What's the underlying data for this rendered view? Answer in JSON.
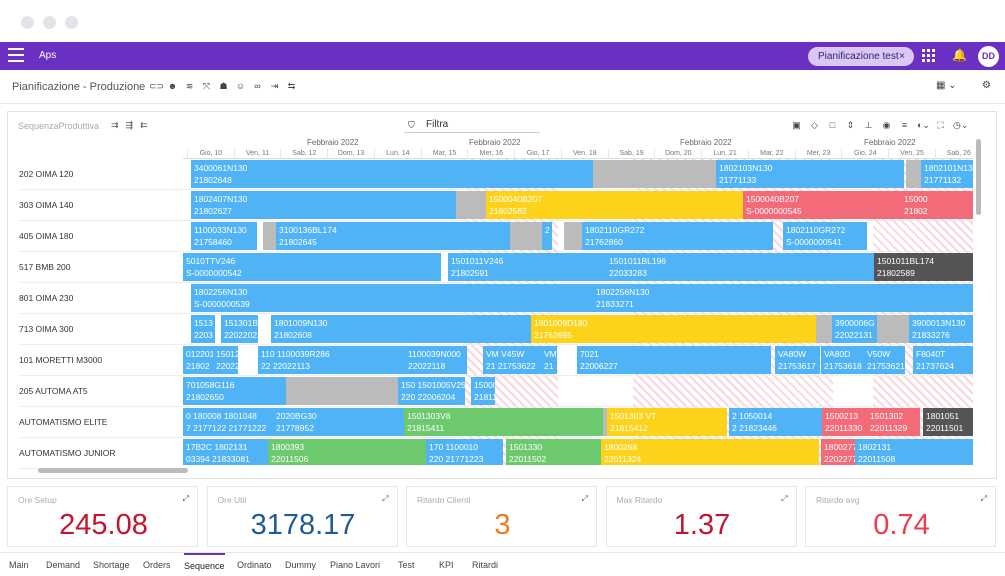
{
  "app": {
    "title": "Aps",
    "chip": "Pianificazione test",
    "chip_close": "×",
    "avatar": "DD",
    "bell": "🔔"
  },
  "toolbar": {
    "page_title": "Pianificazione - Produzione",
    "icons": [
      "⊂⊃",
      "☻",
      "≋",
      "⤧",
      "☗",
      "☺",
      "∞",
      "⇥",
      "⇆"
    ],
    "right1": "▦ ⌄",
    "right2": "⚙"
  },
  "panel": {
    "label": "SequenzaProduttiva",
    "left_icons": [
      "⇉",
      "⇶",
      "⇇"
    ],
    "filter_placeholder": "Filtra",
    "filter_icon": "⛉",
    "right_icons": [
      "▣",
      "◇",
      "□",
      "⇕",
      "⊥",
      "◉",
      "≡",
      "◐⌄",
      "⛶",
      "◷⌄"
    ]
  },
  "months": [
    {
      "label": "Febbraio 2022",
      "x": 124
    },
    {
      "label": "Febbraio 2022",
      "x": 286
    },
    {
      "label": "Febbraio 2022",
      "x": 497
    },
    {
      "label": "Febbraio 2022",
      "x": 681
    }
  ],
  "days": [
    "Gio, 10",
    "Ven, 11",
    "Sab, 12",
    "Dom, 13",
    "Lun, 14",
    "Mar, 15",
    "Mer, 16",
    "Gio, 17",
    "Ven, 18",
    "Sab, 19",
    "Dom, 20",
    "Lun, 21",
    "Mar, 22",
    "Mer, 23",
    "Gio, 24",
    "Ven, 25",
    "Sab, 26"
  ],
  "resources": [
    "202 OIMA 120",
    "303 OIMA 140",
    "405 OIMA 180",
    "517 BMB 200",
    "801 OIMA 230",
    "713 OIMA 300",
    "101 MORETTI M3000",
    "205 AUTOMA AT5",
    "AUTOMATISMO ELITE",
    "AUTOMATISMO JUNIOR"
  ],
  "bars": [
    {
      "row": 0,
      "x": 8,
      "w": 402,
      "c": "b",
      "l1": "3400061N130",
      "l2": "21802648"
    },
    {
      "row": 0,
      "x": 410,
      "w": 123,
      "c": "g",
      "l1": "",
      "l2": ""
    },
    {
      "row": 0,
      "x": 533,
      "w": 188,
      "c": "b",
      "l1": "1802103N130",
      "l2": "21771133"
    },
    {
      "row": 0,
      "x": 723,
      "w": 15,
      "c": "g",
      "l1": "",
      "l2": ""
    },
    {
      "row": 0,
      "x": 738,
      "w": 52,
      "c": "b",
      "l1": "1802101N13",
      "l2": "21771132"
    },
    {
      "row": 1,
      "x": 8,
      "w": 265,
      "c": "b",
      "l1": "1802407N130",
      "l2": "21802627"
    },
    {
      "row": 1,
      "x": 273,
      "w": 30,
      "c": "g",
      "l1": "",
      "l2": ""
    },
    {
      "row": 1,
      "x": 303,
      "w": 257,
      "c": "y",
      "l1": "1500040B207",
      "l2": "21802582"
    },
    {
      "row": 1,
      "x": 560,
      "w": 158,
      "c": "r",
      "l1": "1500040B207",
      "l2": "S-0000000545"
    },
    {
      "row": 1,
      "x": 718,
      "w": 72,
      "c": "r",
      "l1": "15000",
      "l2": "21802"
    },
    {
      "row": 2,
      "x": 8,
      "w": 66,
      "c": "b",
      "l1": "1100033N130",
      "l2": "21758460"
    },
    {
      "row": 2,
      "x": 80,
      "w": 13,
      "c": "g",
      "l1": "",
      "l2": ""
    },
    {
      "row": 2,
      "x": 93,
      "w": 234,
      "c": "b",
      "l1": "3100136BL174",
      "l2": "21802645"
    },
    {
      "row": 2,
      "x": 327,
      "w": 32,
      "c": "g",
      "l1": "",
      "l2": ""
    },
    {
      "row": 2,
      "x": 359,
      "w": 10,
      "c": "b",
      "l1": "2",
      "l2": ""
    },
    {
      "row": 2,
      "x": 381,
      "w": 18,
      "c": "g",
      "l1": "",
      "l2": ""
    },
    {
      "row": 2,
      "x": 399,
      "w": 191,
      "c": "b",
      "l1": "1802110GR272",
      "l2": "21762860"
    },
    {
      "row": 2,
      "x": 600,
      "w": 84,
      "c": "b",
      "l1": "1802110GR272",
      "l2": "S-0000000541"
    },
    {
      "row": 3,
      "x": 0,
      "w": 258,
      "c": "b",
      "l1": "5010TTV246",
      "l2": "S-0000000542"
    },
    {
      "row": 3,
      "x": 265,
      "w": 158,
      "c": "b",
      "l1": "1501011V246",
      "l2": "21802591"
    },
    {
      "row": 3,
      "x": 423,
      "w": 268,
      "c": "b",
      "l1": "1501011BL196",
      "l2": "22033283"
    },
    {
      "row": 3,
      "x": 691,
      "w": 99,
      "c": "d",
      "l1": "1501011BL174",
      "l2": "21802589"
    },
    {
      "row": 4,
      "x": 8,
      "w": 402,
      "c": "b",
      "l1": "1802256N130",
      "l2": "S-0000000539"
    },
    {
      "row": 4,
      "x": 410,
      "w": 380,
      "c": "b",
      "l1": "1802256N130",
      "l2": "21833271"
    },
    {
      "row": 5,
      "x": 8,
      "w": 24,
      "c": "b",
      "l1": "1513",
      "l2": "2203"
    },
    {
      "row": 5,
      "x": 38,
      "w": 37,
      "c": "b",
      "l1": "151301B",
      "l2": "2202202"
    },
    {
      "row": 5,
      "x": 88,
      "w": 260,
      "c": "b",
      "l1": "1801009N130",
      "l2": "21802608"
    },
    {
      "row": 5,
      "x": 348,
      "w": 285,
      "c": "y",
      "l1": "1801009D180",
      "l2": "21762695"
    },
    {
      "row": 5,
      "x": 633,
      "w": 16,
      "c": "g",
      "l1": "",
      "l2": ""
    },
    {
      "row": 5,
      "x": 649,
      "w": 45,
      "c": "b",
      "l1": "3900006G",
      "l2": "22022131"
    },
    {
      "row": 5,
      "x": 694,
      "w": 32,
      "c": "g",
      "l1": "",
      "l2": ""
    },
    {
      "row": 5,
      "x": 726,
      "w": 64,
      "c": "b",
      "l1": "3900013N130",
      "l2": "21833276"
    },
    {
      "row": 6,
      "x": 0,
      "w": 30,
      "c": "b",
      "l1": "012201",
      "l2": "21802"
    },
    {
      "row": 6,
      "x": 30,
      "w": 25,
      "c": "b",
      "l1": "15012",
      "l2": "22022"
    },
    {
      "row": 6,
      "x": 75,
      "w": 155,
      "c": "b",
      "l1": "110 1100039R286",
      "l2": "22 22022113"
    },
    {
      "row": 6,
      "x": 222,
      "w": 62,
      "c": "b",
      "l1": "1100039N000",
      "l2": "22022118"
    },
    {
      "row": 6,
      "x": 300,
      "w": 58,
      "c": "b",
      "l1": "VM V45W",
      "l2": "21 21753622"
    },
    {
      "row": 6,
      "x": 358,
      "w": 16,
      "c": "b",
      "l1": "VM",
      "l2": "21"
    },
    {
      "row": 6,
      "x": 394,
      "w": 194,
      "c": "b",
      "l1": "7021",
      "l2": "22006227"
    },
    {
      "row": 6,
      "x": 592,
      "w": 45,
      "c": "b",
      "l1": "VA80W",
      "l2": "21753617"
    },
    {
      "row": 6,
      "x": 638,
      "w": 43,
      "c": "b",
      "l1": "VA80D",
      "l2": "21753618"
    },
    {
      "row": 6,
      "x": 681,
      "w": 41,
      "c": "b",
      "l1": "V50W",
      "l2": "21753621"
    },
    {
      "row": 6,
      "x": 730,
      "w": 60,
      "c": "b",
      "l1": "F8040T",
      "l2": "21737624"
    },
    {
      "row": 7,
      "x": 0,
      "w": 103,
      "c": "b",
      "l1": "701058G116",
      "l2": "21802650"
    },
    {
      "row": 7,
      "x": 103,
      "w": 112,
      "c": "g",
      "l1": "",
      "l2": ""
    },
    {
      "row": 7,
      "x": 215,
      "w": 67,
      "c": "b",
      "l1": "150 1501005V25",
      "l2": "220 22006204"
    },
    {
      "row": 7,
      "x": 288,
      "w": 24,
      "c": "b",
      "l1": "15000",
      "l2": "21811"
    },
    {
      "row": 8,
      "x": 0,
      "w": 90,
      "c": "b",
      "l1": "0  180008 1801048",
      "l2": "7  2177122 21771222"
    },
    {
      "row": 8,
      "x": 90,
      "w": 131,
      "c": "b",
      "l1": "2020BG30",
      "l2": "21778952"
    },
    {
      "row": 8,
      "x": 221,
      "w": 199,
      "c": "gr",
      "l1": "1501303V8",
      "l2": "21815411"
    },
    {
      "row": 8,
      "x": 420,
      "w": 10,
      "c": "g",
      "l1": "",
      "l2": ""
    },
    {
      "row": 8,
      "x": 424,
      "w": 120,
      "c": "y",
      "l1": "1501303 VT",
      "l2": "21815412"
    },
    {
      "row": 8,
      "x": 546,
      "w": 93,
      "c": "b",
      "l1": "2  1050014",
      "l2": "2  21823446"
    },
    {
      "row": 8,
      "x": 639,
      "w": 45,
      "c": "r",
      "l1": "1500213",
      "l2": "22011330"
    },
    {
      "row": 8,
      "x": 684,
      "w": 53,
      "c": "r",
      "l1": "1501302",
      "l2": "22011329"
    },
    {
      "row": 8,
      "x": 740,
      "w": 50,
      "c": "d",
      "l1": "1801051",
      "l2": "22011501"
    },
    {
      "row": 9,
      "x": 0,
      "w": 85,
      "c": "b",
      "l1": "17B2C 1802131",
      "l2": "03394 21833081"
    },
    {
      "row": 9,
      "x": 85,
      "w": 158,
      "c": "gr",
      "l1": "1800393",
      "l2": "22011506"
    },
    {
      "row": 9,
      "x": 243,
      "w": 77,
      "c": "b",
      "l1": "170 1100010",
      "l2": "220 21771223"
    },
    {
      "row": 9,
      "x": 323,
      "w": 95,
      "c": "gr",
      "l1": "1501330",
      "l2": "22011502"
    },
    {
      "row": 9,
      "x": 418,
      "w": 218,
      "c": "y",
      "l1": "1800268",
      "l2": "22011324"
    },
    {
      "row": 9,
      "x": 638,
      "w": 34,
      "c": "r",
      "l1": "1800277",
      "l2": "2202277"
    },
    {
      "row": 9,
      "x": 672,
      "w": 118,
      "c": "b",
      "l1": "1802131",
      "l2": "22011508"
    }
  ],
  "colors": {
    "b": "#4fb3f6",
    "g": "#bbbbbb",
    "y": "#fdd21a",
    "r": "#f36a78",
    "d": "#555555",
    "gr": "#6cc96e",
    "accent": "#6a2fc3"
  },
  "kpis": [
    {
      "label": "Ore Setup",
      "value": "245.08",
      "color": "#c0162f"
    },
    {
      "label": "Ore Util",
      "value": "3178.17",
      "color": "#1d5c97"
    },
    {
      "label": "Ritardo Clienti",
      "value": "3",
      "color": "#f07b1f"
    },
    {
      "label": "Max Ritardo",
      "value": "1.37",
      "color": "#c0162f"
    },
    {
      "label": "Ritardo avg",
      "value": "0.74",
      "color": "#ef3b4f"
    }
  ],
  "kpi_expand": "⤢",
  "tabs": [
    "Main",
    "Demand",
    "Shortage",
    "Orders",
    "Sequence",
    "Ordinato",
    "Dummy",
    "Piano Lavori",
    "Test",
    "KPI",
    "Ritardi"
  ],
  "active_tab": "Sequence"
}
